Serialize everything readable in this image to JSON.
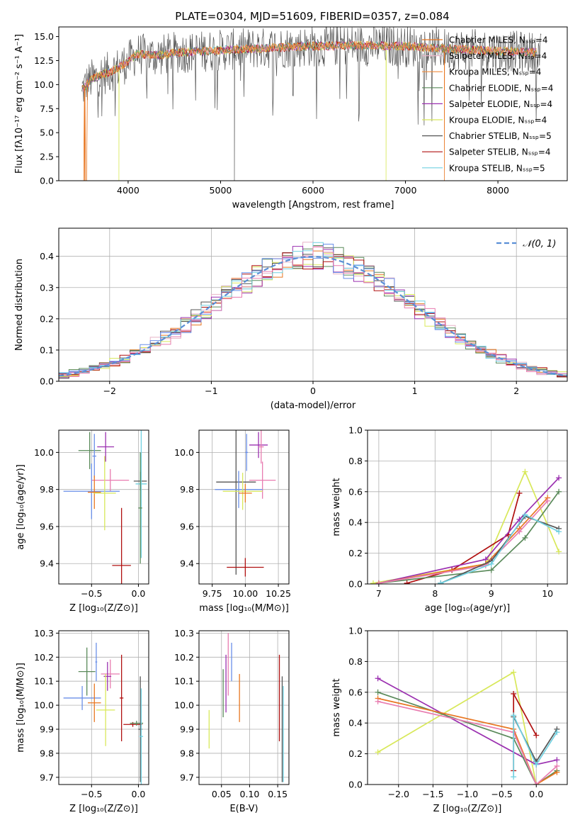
{
  "figure_title": "PLATE=0304, MJD=51609, FIBERID=0357, z=0.084",
  "colors": {
    "Chabrier MILES": "#e87722",
    "Salpeter MILES": "#e8b4c8",
    "Kroupa MILES": "#f08c3c",
    "Chabrier ELODIE": "#5a8a5a",
    "Salpeter ELODIE": "#9b30b0",
    "Kroupa ELODIE": "#d8e85a",
    "Chabrier STELIB": "#555555",
    "Salpeter STELIB": "#b01010",
    "Kroupa STELIB": "#70d0e0",
    "normal": "#5b8fd6",
    "pink": "#e87cb0",
    "blue": "#6a8fe8"
  },
  "chart_data": [
    {
      "id": "spectrum",
      "type": "line",
      "title": "PLATE=0304, MJD=51609, FIBERID=0357, z=0.084",
      "xlabel": "wavelength [Angstrom, rest frame]",
      "ylabel": "Flux [fλ10⁻¹⁷ erg cm⁻² s⁻¹ A⁻¹]",
      "xlim": [
        3250,
        8750
      ],
      "ylim": [
        0,
        16
      ],
      "xticks": [
        4000,
        5000,
        6000,
        7000,
        8000
      ],
      "yticks": [
        0.0,
        2.5,
        5.0,
        7.5,
        10.0,
        12.5,
        15.0
      ],
      "legend_position": "right",
      "legend": [
        "Chabrier MILES, Nₛₛₚ=4",
        "Salpeter MILES, Nₛₛₚ=4",
        "Kroupa MILES, Nₛₛₚ=4",
        "Chabrier ELODIE, Nₛₛₚ=4",
        "Salpeter ELODIE, Nₛₛₚ=4",
        "Kroupa ELODIE, Nₛₛₚ=4",
        "Chabrier STELIB, Nₛₛₚ=5",
        "Salpeter STELIB, Nₛₛₚ=4",
        "Kroupa STELIB, Nₛₛₚ=5"
      ],
      "legend_colors": [
        "#e87722",
        "#e8b4c8",
        "#f08c3c",
        "#5a8a5a",
        "#9b30b0",
        "#d8e85a",
        "#555555",
        "#b01010",
        "#70d0e0"
      ],
      "continuum": {
        "x": [
          3500,
          3600,
          3700,
          3800,
          3900,
          4000,
          4100,
          4300,
          4500,
          5000,
          5500,
          6000,
          6500,
          7000,
          7500,
          8000,
          8500
        ],
        "y": [
          9.5,
          10.5,
          11.0,
          11.3,
          11.8,
          12.4,
          13.2,
          13.0,
          13.3,
          13.6,
          13.8,
          14.0,
          14.1,
          14.0,
          13.7,
          13.5,
          13.3
        ]
      },
      "dips": [
        3530,
        3900,
        5150,
        6790,
        7420
      ]
    },
    {
      "id": "residuals",
      "type": "bar",
      "xlabel": "(data-model)/error",
      "ylabel": "Normed distribution",
      "xlim": [
        -2.5,
        2.5
      ],
      "ylim": [
        0,
        0.49
      ],
      "xticks": [
        -2,
        -1,
        0,
        1,
        2
      ],
      "yticks": [
        0.0,
        0.1,
        0.2,
        0.3,
        0.4
      ],
      "legend": [
        "𝒩(0, 1)"
      ],
      "legend_position": "top-right",
      "bin_width": 0.1
    },
    {
      "id": "age-Z",
      "type": "scatter",
      "xlabel": "Z [log₁₀(Z/Z⊙)]",
      "ylabel": "age  [log₁₀(age/yr)]",
      "xlim": [
        -0.85,
        0.11
      ],
      "ylim": [
        9.29,
        10.12
      ],
      "xticks": [
        -0.5,
        0.0
      ],
      "yticks": [
        9.4,
        9.6,
        9.8,
        10.0
      ],
      "points": [
        {
          "x": -0.52,
          "y": 10.01,
          "xerr": 0.12,
          "yerr": 0.1,
          "c": "#5a8a5a"
        },
        {
          "x": -0.35,
          "y": 10.03,
          "xerr": 0.09,
          "yerr": 0.08,
          "c": "#9b30b0"
        },
        {
          "x": -0.47,
          "y": 9.98,
          "xerr": 0.02,
          "yerr": 0.12,
          "c": "#6a8fe8"
        },
        {
          "x": -0.3,
          "y": 9.85,
          "xerr": 0.2,
          "yerr": 0.06,
          "c": "#e87cb0"
        },
        {
          "x": -0.5,
          "y": 9.79,
          "xerr": 0.3,
          "yerr": 0.15,
          "c": "#6a8fe8"
        },
        {
          "x": -0.47,
          "y": 9.785,
          "xerr": 0.07,
          "yerr": 0.09,
          "c": "#e87722"
        },
        {
          "x": -0.36,
          "y": 9.78,
          "xerr": 0.12,
          "yerr": 0.2,
          "c": "#d8e85a"
        },
        {
          "x": -0.18,
          "y": 9.39,
          "xerr": 0.1,
          "yerr": 0.31,
          "c": "#b01010"
        },
        {
          "x": 0.02,
          "y": 9.845,
          "xerr": 0.07,
          "yerr": 0.05,
          "c": "#555555"
        },
        {
          "x": 0.03,
          "y": 9.83,
          "xerr": 0.06,
          "yerr": 0.4,
          "c": "#70d0e0"
        },
        {
          "x": 0.02,
          "y": 9.7,
          "xerr": 0.02,
          "yerr": 0.3,
          "c": "#5a8a5a"
        }
      ]
    },
    {
      "id": "age-mass",
      "type": "scatter",
      "xlabel": "mass [log₁₀(M/M⊙)]",
      "ylabel": "",
      "xlim": [
        9.65,
        10.33
      ],
      "ylim": [
        9.29,
        10.12
      ],
      "xticks": [
        9.75,
        10.0,
        10.25
      ],
      "yticks": [
        9.4,
        9.6,
        9.8,
        10.0
      ],
      "points": [
        {
          "x": 10.1,
          "y": 10.04,
          "xerr": 0.07,
          "yerr": 0.07,
          "c": "#9b30b0"
        },
        {
          "x": 10.12,
          "y": 10.03,
          "xerr": 0.02,
          "yerr": 0.09,
          "c": "#e87cb0"
        },
        {
          "x": 10.01,
          "y": 10.0,
          "xerr": 0.01,
          "yerr": 0.1,
          "c": "#6a8fe8"
        },
        {
          "x": 10.13,
          "y": 9.85,
          "xerr": 0.1,
          "yerr": 0.1,
          "c": "#e87cb0"
        },
        {
          "x": 9.93,
          "y": 9.84,
          "xerr": 0.15,
          "yerr": 0.5,
          "c": "#555555"
        },
        {
          "x": 9.95,
          "y": 9.8,
          "xerr": 0.18,
          "yerr": 0.1,
          "c": "#6a8fe8"
        },
        {
          "x": 9.98,
          "y": 9.79,
          "xerr": 0.15,
          "yerr": 0.1,
          "c": "#d8e85a"
        },
        {
          "x": 10.0,
          "y": 9.78,
          "xerr": 0.05,
          "yerr": 0.05,
          "c": "#e87722"
        },
        {
          "x": 10.0,
          "y": 9.38,
          "xerr": 0.14,
          "yerr": 0.05,
          "c": "#b01010"
        }
      ]
    },
    {
      "id": "weight-age",
      "type": "line",
      "xlabel": "age  [log₁₀(age/yr)]",
      "ylabel": "mass weight",
      "xlim": [
        6.8,
        10.35
      ],
      "ylim": [
        0,
        1
      ],
      "xticks": [
        7,
        8,
        9,
        10
      ],
      "yticks": [
        0.0,
        0.2,
        0.4,
        0.6,
        0.8,
        1.0
      ],
      "series": [
        {
          "c": "#d8e85a",
          "x": [
            6.9,
            8.9,
            9.6,
            10.2
          ],
          "y": [
            0.005,
            0.13,
            0.73,
            0.21
          ]
        },
        {
          "c": "#b01010",
          "x": [
            7.5,
            8.3,
            9.3,
            9.5
          ],
          "y": [
            0.005,
            0.09,
            0.32,
            0.59
          ]
        },
        {
          "c": "#9b30b0",
          "x": [
            7.0,
            8.9,
            9.5,
            10.2
          ],
          "y": [
            0.005,
            0.16,
            0.42,
            0.69
          ]
        },
        {
          "c": "#5a8a5a",
          "x": [
            7.0,
            9.0,
            9.6,
            10.2
          ],
          "y": [
            0.005,
            0.09,
            0.3,
            0.6
          ]
        },
        {
          "c": "#e87722",
          "x": [
            7.0,
            8.9,
            9.5,
            10.0
          ],
          "y": [
            0.005,
            0.13,
            0.36,
            0.56
          ]
        },
        {
          "c": "#e87cb0",
          "x": [
            7.0,
            8.9,
            9.5,
            10.0
          ],
          "y": [
            0.005,
            0.12,
            0.34,
            0.54
          ]
        },
        {
          "c": "#555555",
          "x": [
            8.1,
            9.0,
            9.6,
            10.2
          ],
          "y": [
            0.005,
            0.15,
            0.44,
            0.36
          ]
        },
        {
          "c": "#70d0e0",
          "x": [
            8.1,
            9.0,
            9.6,
            10.2
          ],
          "y": [
            0.005,
            0.13,
            0.45,
            0.34
          ]
        }
      ]
    },
    {
      "id": "mass-Z",
      "type": "scatter",
      "xlabel": "Z [log₁₀(Z/Z⊙)]",
      "ylabel": "mass [log₁₀(M/M⊙)]",
      "xlim": [
        -0.85,
        0.11
      ],
      "ylim": [
        9.67,
        10.31
      ],
      "xticks": [
        -0.5,
        0.0
      ],
      "yticks": [
        9.7,
        9.8,
        9.9,
        10.0,
        10.1,
        10.2,
        10.3
      ],
      "points": [
        {
          "x": -0.55,
          "y": 10.14,
          "xerr": 0.09,
          "yerr": 0.1,
          "c": "#5a8a5a"
        },
        {
          "x": -0.45,
          "y": 10.18,
          "xerr": 0.01,
          "yerr": 0.08,
          "c": "#6a8fe8"
        },
        {
          "x": -0.3,
          "y": 10.13,
          "xerr": 0.1,
          "yerr": 0.06,
          "c": "#e87cb0"
        },
        {
          "x": -0.33,
          "y": 10.12,
          "xerr": 0.04,
          "yerr": 0.06,
          "c": "#9b30b0"
        },
        {
          "x": -0.6,
          "y": 10.03,
          "xerr": 0.2,
          "yerr": 0.05,
          "c": "#6a8fe8"
        },
        {
          "x": -0.47,
          "y": 10.01,
          "xerr": 0.07,
          "yerr": 0.08,
          "c": "#e87722"
        },
        {
          "x": -0.35,
          "y": 9.98,
          "xerr": 0.1,
          "yerr": 0.15,
          "c": "#d8e85a"
        },
        {
          "x": -0.18,
          "y": 10.03,
          "xerr": 0.02,
          "yerr": 0.18,
          "c": "#b01010"
        },
        {
          "x": -0.06,
          "y": 9.92,
          "xerr": 0.1,
          "yerr": 0.01,
          "c": "#b01010"
        },
        {
          "x": -0.02,
          "y": 9.925,
          "xerr": 0.07,
          "yerr": 0.01,
          "c": "#5a8a5a"
        },
        {
          "x": 0.02,
          "y": 9.9,
          "xerr": 0.02,
          "yerr": 0.22,
          "c": "#555555"
        },
        {
          "x": 0.03,
          "y": 9.87,
          "xerr": 0.02,
          "yerr": 0.2,
          "c": "#70d0e0"
        }
      ]
    },
    {
      "id": "mass-EBV",
      "type": "scatter",
      "xlabel": "E(B-V)",
      "ylabel": "",
      "xlim": [
        0.01,
        0.17
      ],
      "ylim": [
        9.67,
        10.31
      ],
      "xticks": [
        0.05,
        0.1,
        0.15
      ],
      "yticks": [
        9.7,
        9.8,
        9.9,
        10.0,
        10.1,
        10.2,
        10.3
      ],
      "points": [
        {
          "x": 0.028,
          "y": 9.9,
          "xerr": 0.0,
          "yerr": 0.08,
          "c": "#d8e85a"
        },
        {
          "x": 0.053,
          "y": 10.05,
          "xerr": 0.0,
          "yerr": 0.1,
          "c": "#5a8a5a"
        },
        {
          "x": 0.058,
          "y": 10.09,
          "xerr": 0.0,
          "yerr": 0.12,
          "c": "#9b30b0"
        },
        {
          "x": 0.062,
          "y": 10.17,
          "xerr": 0.0,
          "yerr": 0.13,
          "c": "#e87cb0"
        },
        {
          "x": 0.068,
          "y": 10.18,
          "xerr": 0.0,
          "yerr": 0.08,
          "c": "#6a8fe8"
        },
        {
          "x": 0.082,
          "y": 10.03,
          "xerr": 0.0,
          "yerr": 0.1,
          "c": "#e87722"
        },
        {
          "x": 0.153,
          "y": 10.03,
          "xerr": 0.0,
          "yerr": 0.18,
          "c": "#b01010"
        },
        {
          "x": 0.158,
          "y": 9.9,
          "xerr": 0.0,
          "yerr": 0.22,
          "c": "#555555"
        },
        {
          "x": 0.16,
          "y": 9.88,
          "xerr": 0.0,
          "yerr": 0.2,
          "c": "#70d0e0"
        }
      ]
    },
    {
      "id": "weight-Z",
      "type": "line",
      "xlabel": "Z [log₁₀(Z/Z⊙)]",
      "ylabel": "mass weight",
      "xlim": [
        -2.45,
        0.45
      ],
      "ylim": [
        0,
        1
      ],
      "xticks": [
        -2.0,
        -1.5,
        -1.0,
        -0.5,
        0.0
      ],
      "yticks": [
        0.0,
        0.2,
        0.4,
        0.6,
        0.8,
        1.0
      ],
      "series": [
        {
          "c": "#d8e85a",
          "x": [
            -2.3,
            -0.33,
            0.0
          ],
          "y": [
            0.21,
            0.73,
            0.0
          ]
        },
        {
          "c": "#9b30b0",
          "x": [
            -2.3,
            0.0,
            0.3
          ],
          "y": [
            0.69,
            0.13,
            0.16
          ]
        },
        {
          "c": "#5a8a5a",
          "x": [
            -2.3,
            -0.33,
            0.0,
            0.3
          ],
          "y": [
            0.6,
            0.3,
            0.0,
            0.09
          ]
        },
        {
          "c": "#e87722",
          "x": [
            -2.3,
            -0.33,
            0.0,
            0.3
          ],
          "y": [
            0.56,
            0.36,
            0.0,
            0.08
          ]
        },
        {
          "c": "#e87cb0",
          "x": [
            -2.3,
            -0.33,
            0.0,
            0.3
          ],
          "y": [
            0.54,
            0.34,
            0.0,
            0.12
          ]
        },
        {
          "c": "#b01010",
          "x": [
            -0.33,
            -0.33,
            0.0
          ],
          "y": [
            0.09,
            0.59,
            0.32
          ]
        },
        {
          "c": "#555555",
          "x": [
            -0.33,
            0.0,
            0.3
          ],
          "y": [
            0.44,
            0.15,
            0.36
          ]
        },
        {
          "c": "#70d0e0",
          "x": [
            -0.33,
            -0.33,
            0.0,
            0.3
          ],
          "y": [
            0.05,
            0.45,
            0.13,
            0.34
          ]
        }
      ]
    }
  ]
}
